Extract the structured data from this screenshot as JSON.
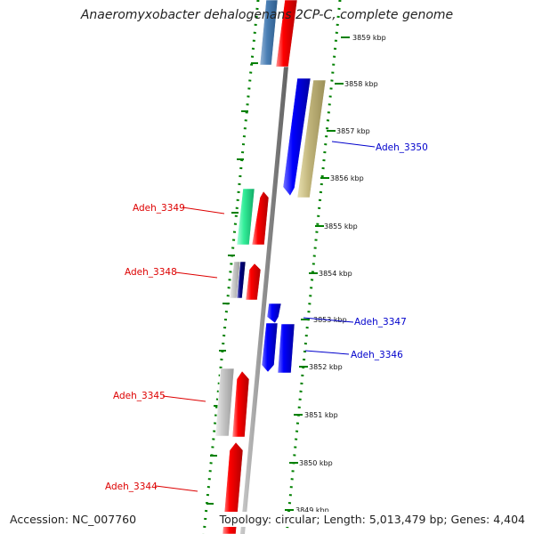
{
  "title": "Anaeromyxobacter dehalogenans 2CP-C, complete genome",
  "accession": "Accession: NC_007760",
  "summary": "Topology: circular; Length: 5,013,479 bp; Genes: 4,404",
  "ticks": [
    "3859 kbp",
    "3858 kbp",
    "3857 kbp",
    "3856 kbp",
    "3855 kbp",
    "3854 kbp",
    "3853 kbp",
    "3852 kbp",
    "3851 kbp",
    "3850 kbp",
    "3849 kbp"
  ],
  "labels": {
    "adeh_3350": "Adeh_3350",
    "adeh_3349": "Adeh_3349",
    "adeh_3348": "Adeh_3348",
    "adeh_3347": "Adeh_3347",
    "adeh_3346": "Adeh_3346",
    "adeh_3345": "Adeh_3345",
    "adeh_3344": "Adeh_3344"
  },
  "colors": {
    "forward_label": "#dd0000",
    "reverse_label": "#0000cc",
    "tick": "#008000",
    "backbone": "#888888"
  }
}
